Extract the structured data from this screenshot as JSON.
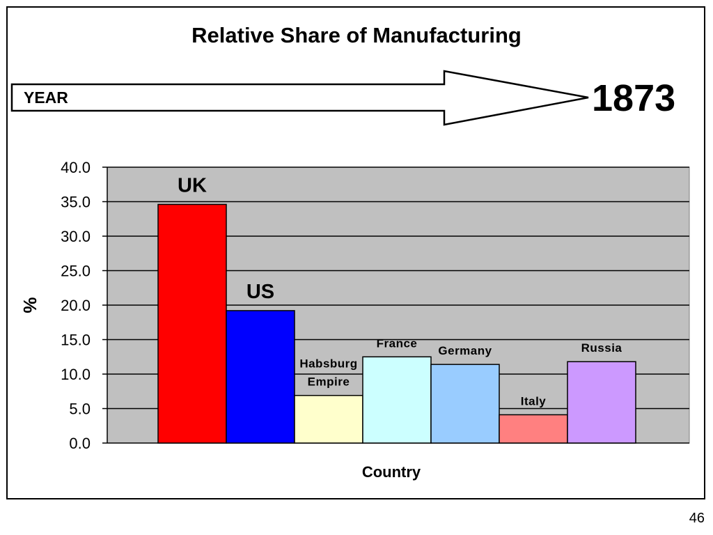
{
  "slide": {
    "title": "Relative Share of Manufacturing",
    "year_label": "YEAR",
    "year_value": "1873",
    "page_number": "46"
  },
  "chart_data": {
    "type": "bar",
    "categories": [
      "UK",
      "US",
      "Habsburg Empire",
      "France",
      "Germany",
      "Italy",
      "Russia"
    ],
    "category_label_lines": [
      [
        "UK"
      ],
      [
        "US"
      ],
      [
        "Habsburg",
        "Empire"
      ],
      [
        "France"
      ],
      [
        "Germany"
      ],
      [
        "Italy"
      ],
      [
        "Russia"
      ]
    ],
    "values": [
      34.6,
      19.2,
      6.9,
      12.5,
      11.4,
      4.1,
      11.8
    ],
    "colors": [
      "#ff0000",
      "#0000ff",
      "#ffffcc",
      "#ccffff",
      "#99ccff",
      "#ff8080",
      "#cc99ff"
    ],
    "label_style": [
      "large",
      "large",
      "small",
      "small",
      "small",
      "small",
      "small"
    ],
    "xlabel": "Country",
    "ylabel": "%",
    "ylim": [
      0,
      40
    ],
    "yticks": [
      "0.0",
      "5.0",
      "10.0",
      "15.0",
      "20.0",
      "25.0",
      "30.0",
      "35.0",
      "40.0"
    ],
    "grid": true,
    "plot_background": "#c0c0c0"
  }
}
